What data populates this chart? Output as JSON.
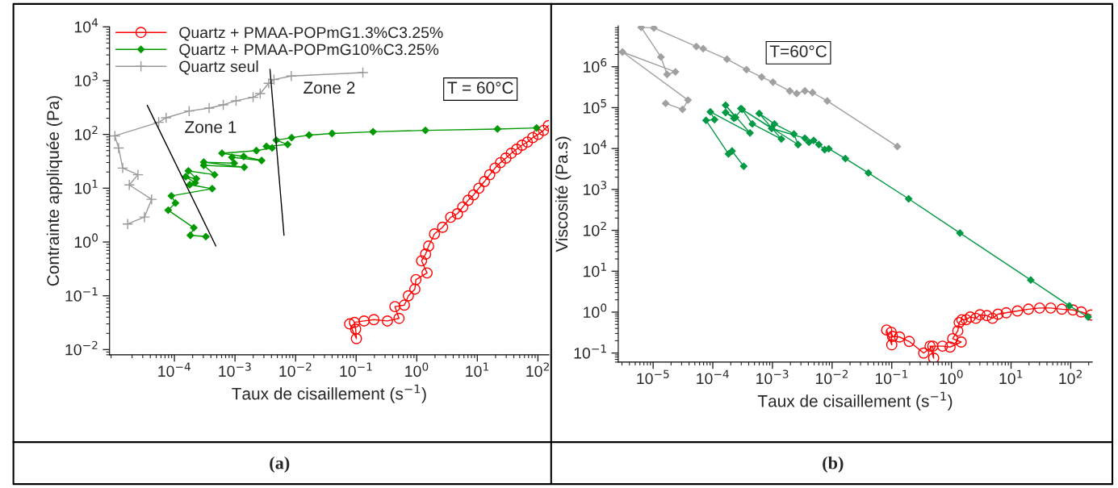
{
  "chart_data": [
    {
      "type": "line",
      "xlabel": "Taux de cisaillement (s$^{−1}$)",
      "ylabel": "Contrainte appliquée (Pa)",
      "log": "xy",
      "xlim": [
        8.5e-06,
        152
      ],
      "ylim": [
        0.008,
        10000
      ],
      "xticks": [
        {
          "value": 0.0001,
          "label": "10$^{−4}$"
        },
        {
          "value": 0.001,
          "label": "10$^{−3}$"
        },
        {
          "value": 0.01,
          "label": "10$^{−2}$"
        },
        {
          "value": 0.1,
          "label": "10$^{−1}$"
        },
        {
          "value": 1,
          "label": "10$^{0}$"
        },
        {
          "value": 10,
          "label": "10$^{1}$"
        },
        {
          "value": 100,
          "label": "10$^{2}$"
        }
      ],
      "yticks": [
        {
          "value": 0.01,
          "label": "10$^{−2}$"
        },
        {
          "value": 0.1,
          "label": "10$^{−1}$"
        },
        {
          "value": 1,
          "label": "10$^{0}$"
        },
        {
          "value": 10,
          "label": "10$^{1}$"
        },
        {
          "value": 100,
          "label": "10$^{2}$"
        },
        {
          "value": 1000,
          "label": "10$^{3}$"
        },
        {
          "value": 10000,
          "label": "10$^{4}$"
        }
      ],
      "legend": "top left",
      "series": [
        {
          "name": "Quartz + PMAA-POPmG1.3%C3.25%",
          "color": "#ff0000",
          "marker": "circle",
          "x": [
            0.078,
            0.101,
            0.098,
            0.094,
            0.135,
            0.196,
            0.328,
            0.509,
            0.436,
            0.625,
            0.728,
            0.93,
            0.97,
            1.48,
            1.2,
            1.4,
            1.57,
            1.96,
            2.67,
            3.63,
            4.69,
            5.75,
            7.06,
            8.66,
            10.6,
            13.1,
            16,
            19.6,
            24.1,
            29.6,
            36.3,
            44.6,
            54.7,
            67,
            82,
            101,
            124,
            149
          ],
          "values": [
            0.03,
            0.016,
            0.024,
            0.032,
            0.034,
            0.036,
            0.034,
            0.038,
            0.063,
            0.067,
            0.1,
            0.133,
            0.2,
            0.266,
            0.447,
            0.596,
            0.84,
            1.41,
            1.88,
            2.88,
            3.35,
            4.47,
            5.96,
            7.5,
            10,
            13.3,
            17.8,
            23.7,
            29.9,
            36.3,
            44.7,
            53,
            63,
            72,
            87,
            100,
            119,
            146
          ]
        },
        {
          "name": "Quartz + PMAA-POPmG10%C3.25%",
          "color": "#009900",
          "marker": "diamond",
          "x": [
            0.00033,
            0.000183,
            0.000209,
            7.9e-05,
            0.000104,
            8.9e-05,
            0.00042,
            0.000179,
            0.00022,
            0.000154,
            0.00023,
            0.00017,
            0.00046,
            0.000305,
            0.00142,
            0.000305,
            0.00097,
            0.00089,
            0.00275,
            0.00139,
            0.00061,
            0.00225,
            0.0041,
            0.0033,
            0.0074,
            0.0048,
            0.0086,
            0.0167,
            0.04,
            0.19,
            1.39,
            21.5,
            95
          ],
          "values": [
            1.26,
            1.33,
            1.84,
            3.9,
            5.3,
            7.2,
            9.8,
            11.6,
            12.6,
            16.4,
            15,
            21,
            17.8,
            26.6,
            24.5,
            30.5,
            29.2,
            37.6,
            32.7,
            38.9,
            44.7,
            50,
            56,
            60,
            65,
            78,
            87,
            97,
            104,
            112,
            119,
            126,
            132
          ]
        },
        {
          "name": "Quartz seul",
          "color": "#999999",
          "marker": "cross",
          "x": [
            1.69e-05,
            3.2e-05,
            4.2e-05,
            1.8e-05,
            2.5e-05,
            1.4e-05,
            1.2e-05,
            1.04e-05,
            5.5e-05,
            7.3e-05,
            0.000175,
            0.000374,
            0.00064,
            0.00104,
            0.00199,
            0.0026,
            0.0036,
            0.0044,
            0.0085,
            0.129
          ],
          "values": [
            2.16,
            2.9,
            6.2,
            11.5,
            17.8,
            23.7,
            56,
            94,
            168,
            204,
            272,
            309,
            355,
            422,
            490,
            575,
            891,
            1047,
            1216,
            1413
          ]
        },
        {
          "type": "line",
          "color": "#000000",
          "marker": "none",
          "x": [
            3.56e-05,
            0.000483
          ],
          "values": [
            347,
            0.84
          ]
        },
        {
          "type": "line",
          "color": "#000000",
          "marker": "none",
          "x": [
            0.00378,
            0.00644
          ],
          "values": [
            1622,
            1.33
          ]
        }
      ],
      "annotations": [
        "Zone 1",
        "Zone 2",
        "T = 60°C",
        "(a)"
      ]
    },
    {
      "type": "line",
      "xlabel": "Taux de cisaillement (s$^{−1}$)",
      "ylabel": "Viscosité (Pa.s)",
      "log": "xy",
      "xlim": [
        2.6e-06,
        230
      ],
      "ylim": [
        0.06,
        10000000
      ],
      "xticks": [
        {
          "value": 1e-05,
          "label": "10$^{−5}$"
        },
        {
          "value": 0.0001,
          "label": "10$^{−4}$"
        },
        {
          "value": 0.001,
          "label": "10$^{−3}$"
        },
        {
          "value": 0.01,
          "label": "10$^{−2}$"
        },
        {
          "value": 0.1,
          "label": "10$^{−1}$"
        },
        {
          "value": 1,
          "label": "10$^{0}$"
        },
        {
          "value": 10,
          "label": "10$^{1}$"
        },
        {
          "value": 100,
          "label": "10$^{2}$"
        }
      ],
      "yticks": [
        {
          "value": 0.1,
          "label": "10$^{−1}$"
        },
        {
          "value": 1,
          "label": "10$^{0}$"
        },
        {
          "value": 10,
          "label": "10$^{1}$"
        },
        {
          "value": 100,
          "label": "10$^{2}$"
        },
        {
          "value": 1000,
          "label": "10$^{3}$"
        },
        {
          "value": 10000,
          "label": "10$^{4}$"
        },
        {
          "value": 100000,
          "label": "10$^{5}$"
        },
        {
          "value": 1000000,
          "label": "10$^{6}$"
        }
      ],
      "series": [
        {
          "color": "#ff0000",
          "marker": "circle",
          "x": [
            0.082,
            0.1,
            0.098,
            0.103,
            0.135,
            0.196,
            0.343,
            0.488,
            0.504,
            0.438,
            0.71,
            0.95,
            1.46,
            1.05,
            1.28,
            1.35,
            1.5,
            1.77,
            2.07,
            2.57,
            3.01,
            3.94,
            4.88,
            6.04,
            8.3,
            12.8,
            19.6,
            30.1,
            46.2,
            71,
            109,
            150,
            219
          ],
          "values": [
            0.365,
            0.159,
            0.322,
            0.255,
            0.247,
            0.192,
            0.0995,
            0.147,
            0.075,
            0.147,
            0.147,
            0.14,
            0.186,
            0.224,
            0.348,
            0.557,
            0.652,
            0.652,
            0.762,
            0.705,
            0.863,
            0.824,
            0.705,
            0.891,
            0.963,
            1.07,
            1.18,
            1.26,
            1.26,
            1.18,
            1.13,
            1.01,
            0.85
          ]
        },
        {
          "color": "#009944",
          "marker": "diamond",
          "x": [
            0.00033,
            0.00021,
            0.000183,
            7.7e-05,
            0.000107,
            9.1e-05,
            0.00042,
            0.000164,
            0.00024,
            0.000164,
            0.000226,
            0.00031,
            0.00046,
            0.00141,
            0.0006,
            0.00108,
            0.00229,
            0.00269,
            0.000296,
            0.00097,
            0.0035,
            0.0041,
            0.0049,
            0.006,
            0.0075,
            0.0088,
            0.0167,
            0.0406,
            0.192,
            1.39,
            21.4,
            95,
            196
          ],
          "values": [
            3700,
            8700,
            7400,
            49000,
            51000,
            79000,
            24100,
            115000,
            58000,
            76000,
            55000,
            91000,
            40000,
            17100,
            72000,
            40000,
            22600,
            12500,
            95000,
            31000,
            17900,
            14200,
            15800,
            12500,
            9400,
            9900,
            5700,
            2530,
            590,
            86,
            6.1,
            1.43,
            0.76
          ]
        },
        {
          "color": "#a0a0a0",
          "marker": "diamond",
          "x": [
            1.62e-05,
            3.1e-05,
            3.84e-05,
            3.06e-06,
            2.36e-05,
            1.71e-05,
            1.35e-05,
            6.3e-06,
            1.03e-05,
            5.3e-05,
            6.9e-05,
            0.000173,
            0.000367,
            0.00066,
            0.00102,
            0.00195,
            0.00255,
            0.0035,
            0.0047,
            0.0083,
            0.124
          ],
          "values": [
            127000,
            91000,
            153000,
            2290000,
            750000,
            650000,
            1730000,
            9200000,
            8900000,
            3130000,
            2770000,
            1530000,
            850000,
            560000,
            420000,
            256000,
            222000,
            256000,
            234000,
            146000,
            11200
          ]
        }
      ],
      "annotations": [
        "T=60°C",
        "(b)"
      ]
    }
  ]
}
